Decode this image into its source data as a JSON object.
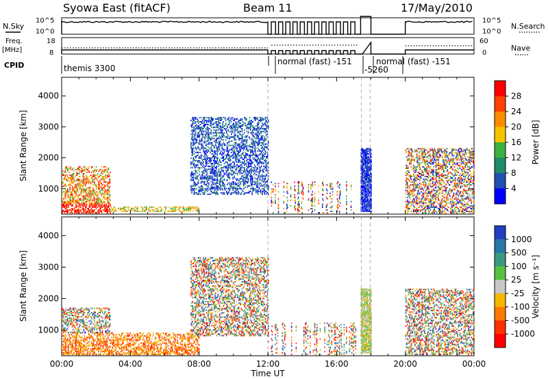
{
  "header": {
    "station": "Syowa East (fitACF)",
    "beam": "Beam 11",
    "date": "17/May/2010"
  },
  "panels": {
    "nsky_label": "N.Sky",
    "nsearch_label": "N.Search",
    "nsky_ticks": [
      "10^5",
      "10^0"
    ],
    "nsearch_ticks": [
      "10^5",
      "10^0"
    ],
    "freq_label": "Freq.",
    "freq_unit": "[MHz]",
    "freq_ticks": [
      "18",
      "8"
    ],
    "nave_label": "Nave",
    "nave_ticks": [
      "60",
      "0"
    ],
    "cpid_label": "CPID",
    "cpid_segments": [
      "themis 3300",
      "normal (fast) -151",
      "-5260",
      "normal (fast) -151"
    ]
  },
  "chart_data": [
    {
      "type": "heatmap",
      "name": "power",
      "ylabel": "Slant Range [km]",
      "xlabel": "Time UT",
      "x_ticks": [
        "00:00",
        "04:00",
        "08:00",
        "12:00",
        "16:00",
        "20:00",
        "00:00"
      ],
      "x_range_hours": [
        0,
        24
      ],
      "y_ticks": [
        1000,
        2000,
        3000,
        4000
      ],
      "ylim": [
        180,
        4600
      ],
      "colorbar": {
        "label": "Power [dB]",
        "ticks": [
          "28",
          "24",
          "20",
          "16",
          "12",
          "8",
          "4"
        ],
        "colors": [
          "#ff0000",
          "#ff4000",
          "#ff8c00",
          "#f5c400",
          "#3cb040",
          "#208a6a",
          "#2050b0",
          "#0000ff"
        ]
      },
      "regions": [
        {
          "t": [
            0.0,
            2.8
          ],
          "r": [
            200,
            1700
          ],
          "level": "high"
        },
        {
          "t": [
            2.8,
            8.0
          ],
          "r": [
            250,
            400
          ],
          "level": "mid"
        },
        {
          "t": [
            7.5,
            12.0
          ],
          "r": [
            800,
            3300
          ],
          "level": "low"
        },
        {
          "t": [
            12.0,
            17.2
          ],
          "r": [
            200,
            1200
          ],
          "level": "mixed"
        },
        {
          "t": [
            17.4,
            18.0
          ],
          "r": [
            250,
            2300
          ],
          "level": "very-low"
        },
        {
          "t": [
            20.0,
            24.0
          ],
          "r": [
            200,
            2300
          ],
          "level": "mixed"
        }
      ]
    },
    {
      "type": "heatmap",
      "name": "velocity",
      "ylabel": "Slant Range [km]",
      "xlabel": "Time UT",
      "x_ticks": [
        "00:00",
        "04:00",
        "08:00",
        "12:00",
        "16:00",
        "20:00",
        "00:00"
      ],
      "x_range_hours": [
        0,
        24
      ],
      "y_ticks": [
        1000,
        2000,
        3000,
        4000
      ],
      "ylim": [
        180,
        4600
      ],
      "colorbar": {
        "label": "Velocity [m s⁻¹]",
        "ticks": [
          "1000",
          "500",
          "100",
          "25",
          "-25",
          "-100",
          "-500",
          "-1000"
        ],
        "colors": [
          "#2040c0",
          "#2a78a8",
          "#3a9a80",
          "#58c040",
          "#c8c8c8",
          "#f5b800",
          "#ff7a00",
          "#ff3000",
          "#ff0000"
        ]
      },
      "regions": [
        {
          "t": [
            0.0,
            8.0
          ],
          "r": [
            200,
            900
          ],
          "level": "negative"
        },
        {
          "t": [
            0.0,
            2.8
          ],
          "r": [
            900,
            1700
          ],
          "level": "mixed"
        },
        {
          "t": [
            7.5,
            12.0
          ],
          "r": [
            800,
            3300
          ],
          "level": "mixed"
        },
        {
          "t": [
            12.0,
            17.2
          ],
          "r": [
            200,
            1200
          ],
          "level": "mixed"
        },
        {
          "t": [
            17.4,
            18.0
          ],
          "r": [
            250,
            2300
          ],
          "level": "near-zero"
        },
        {
          "t": [
            20.0,
            24.0
          ],
          "r": [
            200,
            2300
          ],
          "level": "mixed"
        }
      ]
    }
  ]
}
